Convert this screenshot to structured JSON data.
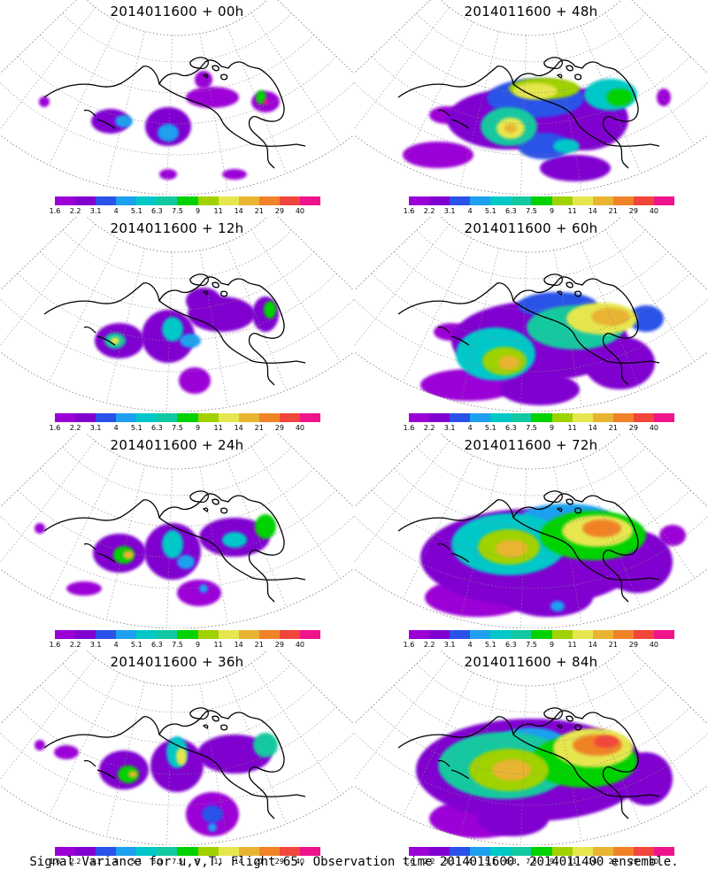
{
  "panels": [
    {
      "title": "2014011600 + 00h",
      "lead_hours": 0
    },
    {
      "title": "2014011600 + 48h",
      "lead_hours": 48
    },
    {
      "title": "2014011600 + 12h",
      "lead_hours": 12
    },
    {
      "title": "2014011600 + 60h",
      "lead_hours": 60
    },
    {
      "title": "2014011600 + 24h",
      "lead_hours": 24
    },
    {
      "title": "2014011600 + 72h",
      "lead_hours": 72
    },
    {
      "title": "2014011600 + 36h",
      "lead_hours": 36
    },
    {
      "title": "2014011600 + 84h",
      "lead_hours": 84
    }
  ],
  "colorbar": {
    "labels": [
      "1.6",
      "2.2",
      "3.1",
      "4",
      "5.1",
      "6.3",
      "7.5",
      "9",
      "11",
      "14",
      "21",
      "29",
      "40"
    ],
    "colors": [
      "#9b00d6",
      "#8000d0",
      "#2a52e8",
      "#1ea0f0",
      "#00c8c8",
      "#12c8a0",
      "#00d200",
      "#a0d200",
      "#e6e650",
      "#e8b432",
      "#f08228",
      "#f0463c",
      "#f0148c"
    ]
  },
  "caption": "Signal Variance for u,v,T. Flight 65. Observation time 2014011600. 2014011400 ensemble."
}
